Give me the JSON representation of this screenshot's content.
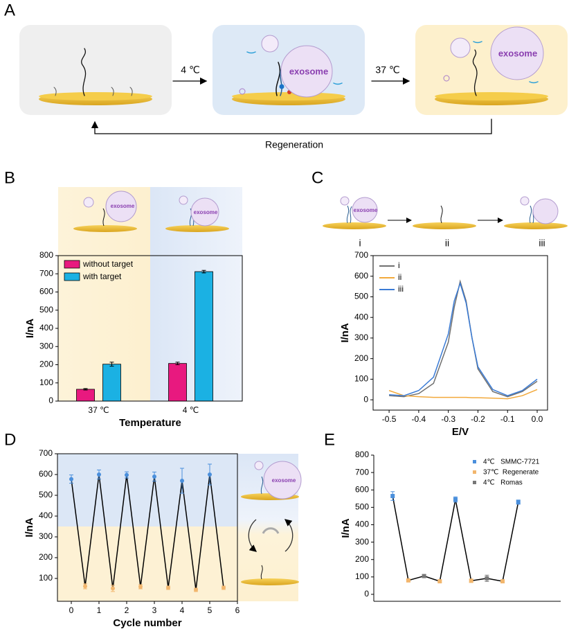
{
  "panels": [
    "A",
    "B",
    "C",
    "D",
    "E"
  ],
  "scheme": {
    "step1": "4 ℃",
    "step2": "37 ℃",
    "loop": "Regeneration",
    "exosome": "exosome",
    "stages": [
      "i",
      "ii",
      "iii"
    ]
  },
  "chart_data": [
    {
      "type": "bar",
      "xlabel": "Temperature",
      "ylabel": "I/nA",
      "categories": [
        "37 ℃",
        "4 ℃"
      ],
      "series": [
        {
          "name": "without target",
          "color": "#e8197f",
          "values": [
            65,
            207
          ],
          "errors": [
            4,
            7
          ]
        },
        {
          "name": "with target",
          "color": "#1bb1e3",
          "values": [
            203,
            712
          ],
          "errors": [
            11,
            7
          ]
        }
      ],
      "ylim": [
        0,
        800
      ],
      "yticks": [
        0,
        100,
        200,
        300,
        400,
        500,
        600,
        700,
        800
      ]
    },
    {
      "type": "line",
      "xlabel": "E/V",
      "ylabel": "I/nA",
      "x": [
        -0.5,
        -0.45,
        -0.4,
        -0.35,
        -0.3,
        -0.28,
        -0.26,
        -0.24,
        -0.22,
        -0.2,
        -0.15,
        -0.1,
        -0.05,
        0.0
      ],
      "series": [
        {
          "name": "i",
          "color": "#707070",
          "values": [
            20,
            15,
            30,
            80,
            280,
            450,
            575,
            480,
            300,
            150,
            40,
            15,
            40,
            90
          ]
        },
        {
          "name": "ii",
          "color": "#f2a93b",
          "values": [
            45,
            20,
            15,
            12,
            12,
            12,
            12,
            12,
            10,
            10,
            8,
            5,
            20,
            50
          ]
        },
        {
          "name": "iii",
          "color": "#3a7bd5",
          "values": [
            25,
            20,
            45,
            110,
            320,
            480,
            565,
            470,
            300,
            160,
            50,
            20,
            45,
            100
          ]
        }
      ],
      "xlim": [
        -0.554,
        0.035
      ],
      "xticks": [
        -0.5,
        -0.4,
        -0.3,
        -0.2,
        -0.1,
        {
          "value": 0,
          "label": "0.0"
        }
      ],
      "ylim": [
        -50,
        700
      ],
      "yticks": [
        0,
        100,
        200,
        300,
        400,
        500,
        600,
        700
      ]
    },
    {
      "type": "line",
      "xlabel": "Cycle number",
      "ylabel": "I/nA",
      "x": [
        0,
        0.5,
        1,
        1.5,
        2,
        2.5,
        3,
        3.5,
        4,
        4.5,
        5,
        5.5
      ],
      "values": [
        578,
        62,
        600,
        52,
        598,
        60,
        590,
        55,
        570,
        45,
        600,
        55
      ],
      "errors": [
        20,
        12,
        22,
        15,
        15,
        10,
        22,
        8,
        60,
        8,
        50,
        8
      ],
      "point_colors": [
        "#4a8fdc",
        "#f2b66d",
        "#4a8fdc",
        "#f2b66d",
        "#4a8fdc",
        "#f2b66d",
        "#4a8fdc",
        "#f2b66d",
        "#4a8fdc",
        "#f2b66d",
        "#4a8fdc",
        "#f2b66d"
      ],
      "background_split": 350,
      "xlim": [
        -0.5,
        6
      ],
      "xticks": [
        0,
        1,
        2,
        3,
        4,
        5,
        6
      ],
      "ylim": [
        -10,
        700
      ],
      "yticks": [
        100,
        200,
        300,
        400,
        500,
        600,
        700
      ]
    },
    {
      "type": "line",
      "ylabel": "I/nA",
      "x": [
        0,
        1,
        2,
        3,
        4,
        5,
        6,
        7,
        8
      ],
      "values": [
        565,
        80,
        105,
        75,
        545,
        78,
        92,
        75,
        530
      ],
      "errors": [
        25,
        5,
        8,
        5,
        15,
        10,
        18,
        8,
        12
      ],
      "point_colors": [
        "#4a8fdc",
        "#f2b66d",
        "#777777",
        "#f2b66d",
        "#4a8fdc",
        "#f2b66d",
        "#777777",
        "#f2b66d",
        "#4a8fdc"
      ],
      "legend": [
        {
          "name": "4℃   SMMC-7721",
          "color": "#4a8fdc"
        },
        {
          "name": "37℃  Regenerate",
          "color": "#f2b66d"
        },
        {
          "name": "4℃   Romas",
          "color": "#777777"
        }
      ],
      "xlim": [
        -1.2,
        10.7
      ],
      "ylim": [
        -40,
        800
      ],
      "yticks": [
        0,
        100,
        200,
        300,
        400,
        500,
        600,
        700,
        800
      ]
    }
  ]
}
